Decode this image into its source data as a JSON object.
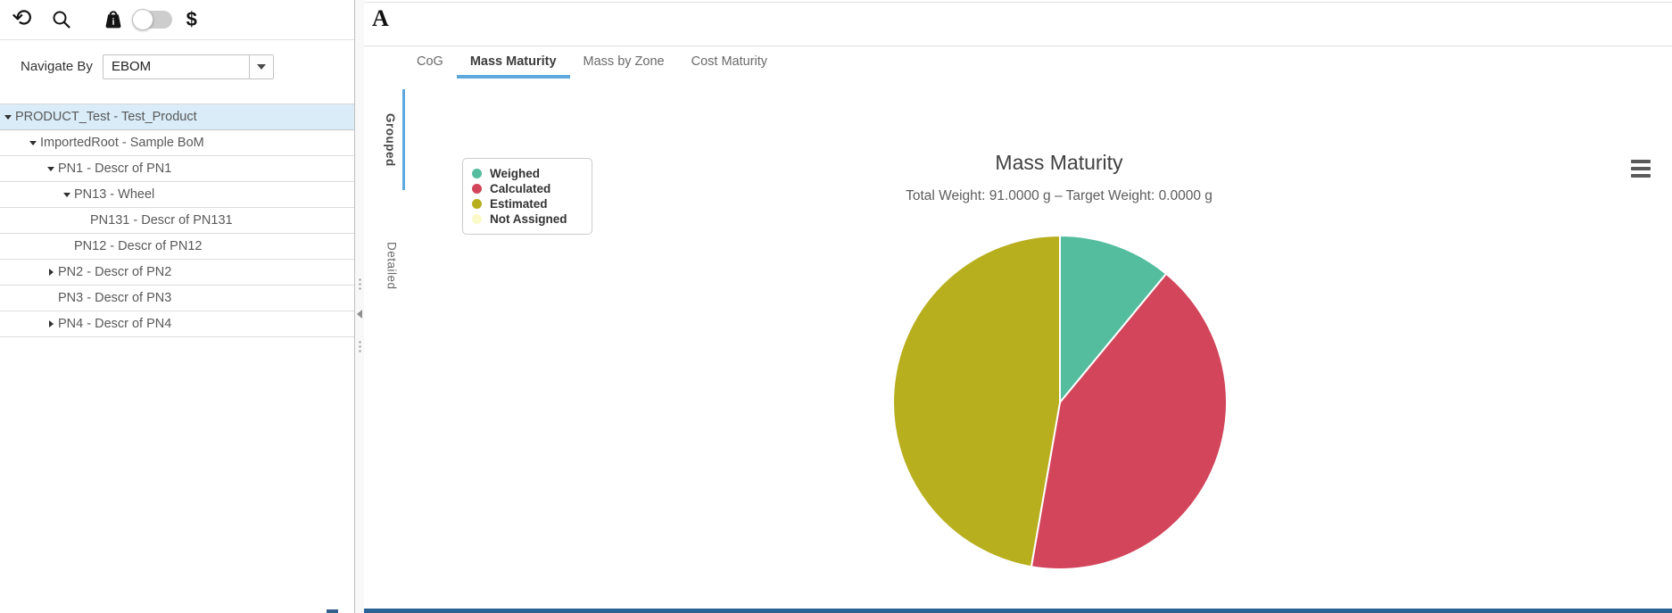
{
  "sidebar": {
    "toolbar": {
      "icons": [
        "refresh-icon",
        "search-icon",
        "weight-icon",
        "units-toggle",
        "currency-icon"
      ],
      "currency_symbol": "$",
      "toggle_state": "off"
    },
    "navigate_by": {
      "label": "Navigate By",
      "value": "EBOM"
    },
    "tree": [
      {
        "label": "PRODUCT_Test - Test_Product",
        "level": 0,
        "state": "expanded",
        "selected": true
      },
      {
        "label": "ImportedRoot - Sample BoM",
        "level": 1,
        "state": "expanded",
        "selected": false
      },
      {
        "label": "PN1 - Descr of PN1",
        "level": 2,
        "state": "expanded",
        "selected": false
      },
      {
        "label": "PN13 - Wheel",
        "level": 3,
        "state": "expanded",
        "selected": false
      },
      {
        "label": "PN131 - Descr of PN131",
        "level": 4,
        "state": "leaf",
        "selected": false
      },
      {
        "label": "PN12 - Descr of PN12",
        "level": 3,
        "state": "leaf",
        "selected": false
      },
      {
        "label": "PN2 - Descr of PN2",
        "level": 2,
        "state": "collapsed",
        "selected": false
      },
      {
        "label": "PN3 - Descr of PN3",
        "level": 2,
        "state": "leaf",
        "selected": false
      },
      {
        "label": "PN4 - Descr of PN4",
        "level": 2,
        "state": "collapsed",
        "selected": false
      }
    ]
  },
  "main": {
    "annotation_button": "A",
    "tabs": [
      {
        "label": "CoG",
        "active": false
      },
      {
        "label": "Mass Maturity",
        "active": true
      },
      {
        "label": "Mass by Zone",
        "active": false
      },
      {
        "label": "Cost Maturity",
        "active": false
      }
    ],
    "vertical_tabs": [
      {
        "label": "Grouped",
        "active": true
      },
      {
        "label": "Detailed",
        "active": false
      }
    ],
    "menu_icon": "hamburger-icon"
  },
  "chart_data": {
    "type": "pie",
    "title": "Mass Maturity",
    "subtitle": "Total Weight: 91.0000 g – Target Weight: 0.0000 g",
    "total_weight_g": 91.0,
    "target_weight_g": 0.0,
    "unit": "g",
    "labels": [
      "Weighed",
      "Calculated",
      "Estimated",
      "Not Assigned"
    ],
    "values": [
      10,
      38,
      43,
      0
    ],
    "colors": [
      "#54BD9E",
      "#D2455B",
      "#B8AF1E",
      "#FAFAC8"
    ],
    "legend_position": "left",
    "start_angle_deg": 0,
    "direction": "clockwise"
  },
  "colors": {
    "tab_accent": "#5da9dd",
    "selected_row_bg": "#d9ecf8",
    "bottom_bar": "#2a6496",
    "row_border": "#dcdcdc"
  }
}
